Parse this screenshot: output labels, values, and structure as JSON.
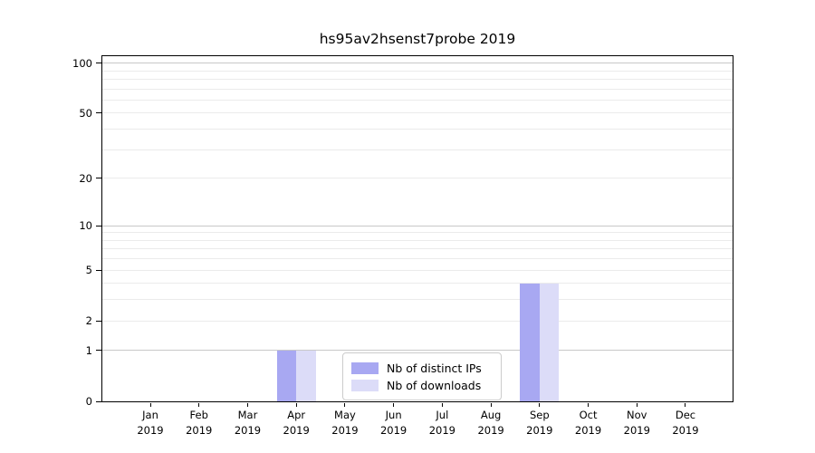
{
  "figure": {
    "title": "hs95av2hsenst7probe 2019"
  },
  "chart_data": {
    "type": "bar",
    "title": "hs95av2hsenst7probe 2019",
    "xlabel": "",
    "ylabel": "",
    "categories": [
      {
        "month": "Jan",
        "year": "2019"
      },
      {
        "month": "Feb",
        "year": "2019"
      },
      {
        "month": "Mar",
        "year": "2019"
      },
      {
        "month": "Apr",
        "year": "2019"
      },
      {
        "month": "May",
        "year": "2019"
      },
      {
        "month": "Jun",
        "year": "2019"
      },
      {
        "month": "Jul",
        "year": "2019"
      },
      {
        "month": "Aug",
        "year": "2019"
      },
      {
        "month": "Sep",
        "year": "2019"
      },
      {
        "month": "Oct",
        "year": "2019"
      },
      {
        "month": "Nov",
        "year": "2019"
      },
      {
        "month": "Dec",
        "year": "2019"
      }
    ],
    "series": [
      {
        "name": "Nb of distinct IPs",
        "color": "#a8a8f2",
        "values": [
          0,
          0,
          0,
          1,
          0,
          0,
          0,
          0,
          4,
          0,
          0,
          0
        ]
      },
      {
        "name": "Nb of downloads",
        "color": "#dcdcf8",
        "values": [
          0,
          0,
          0,
          1,
          0,
          0,
          0,
          0,
          4,
          0,
          0,
          0
        ]
      }
    ],
    "yscale": "log1p",
    "ylim": [
      0,
      110
    ],
    "yticks": [
      0,
      1,
      2,
      5,
      10,
      20,
      50,
      100
    ],
    "ytick_labels": [
      "0",
      "1",
      "2",
      "5",
      "10",
      "20",
      "50",
      "100"
    ],
    "major_gridlines": [
      1,
      10,
      100
    ],
    "minor_gridlines": [
      2,
      3,
      4,
      5,
      6,
      7,
      8,
      9,
      20,
      30,
      40,
      50,
      60,
      70,
      80,
      90
    ],
    "grid": "horizontal",
    "legend_position": "lower center"
  },
  "colors": {
    "background": "#ffffff",
    "axis": "#000000",
    "text": "#000000",
    "major_grid": "#c8c8c8",
    "minor_grid": "#ebebeb",
    "legend_border": "#cccccc"
  }
}
